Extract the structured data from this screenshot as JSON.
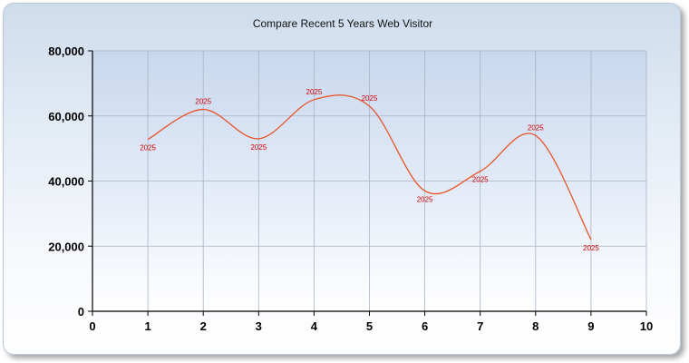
{
  "chart_data": {
    "type": "line",
    "title": "Compare Recent 5 Years Web Visitor",
    "xlabel": "",
    "ylabel": "",
    "xlim": [
      0,
      10
    ],
    "ylim": [
      0,
      80000
    ],
    "x_ticks": [
      "0",
      "1",
      "2",
      "3",
      "4",
      "5",
      "6",
      "7",
      "8",
      "9",
      "10"
    ],
    "y_ticks": [
      "0",
      "20,000",
      "40,000",
      "60,000",
      "80,000"
    ],
    "grid": true,
    "series": [
      {
        "name": "",
        "color": "#e8542a",
        "smooth": true,
        "points": [
          {
            "x": 1,
            "y": 52800,
            "label": "2025"
          },
          {
            "x": 2,
            "y": 62000,
            "label": "2025"
          },
          {
            "x": 3,
            "y": 53000,
            "label": "2025"
          },
          {
            "x": 4,
            "y": 65000,
            "label": "2025"
          },
          {
            "x": 5,
            "y": 63000,
            "label": "2025"
          },
          {
            "x": 6,
            "y": 37000,
            "label": "2025"
          },
          {
            "x": 7,
            "y": 43000,
            "label": "2025"
          },
          {
            "x": 8,
            "y": 54000,
            "label": "2025"
          },
          {
            "x": 9,
            "y": 22000,
            "label": "2025"
          }
        ]
      }
    ]
  }
}
